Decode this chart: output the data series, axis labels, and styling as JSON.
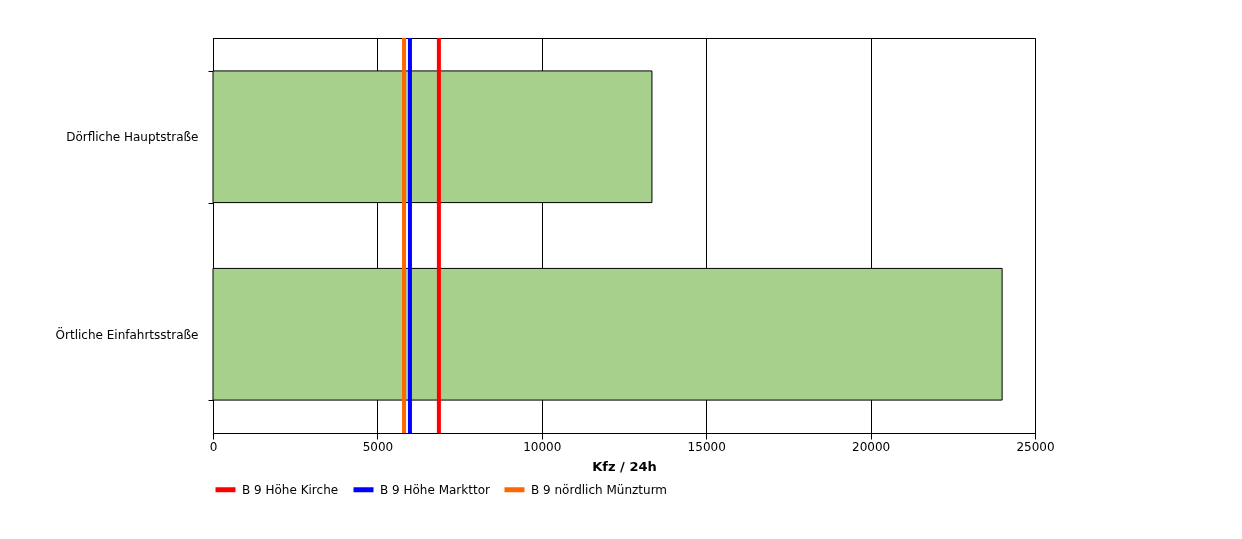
{
  "chart_data": {
    "type": "bar",
    "orientation": "horizontal",
    "xlabel": "Kfz / 24h",
    "categories": [
      "Dörfliche Hauptstraße",
      "Örtliche Einfahrtsstraße"
    ],
    "values": [
      13350,
      24000
    ],
    "color": "#a8d08d",
    "xlim": [
      0,
      25000
    ],
    "xticks": [
      0,
      5000,
      10000,
      15000,
      20000,
      25000
    ],
    "grid": "x",
    "legend": "bottom",
    "ref_lines": [
      {
        "axis": "x",
        "value": 6870,
        "label": "B 9 Höhe Kirche",
        "color": "#ff0000"
      },
      {
        "axis": "x",
        "value": 5990,
        "label": "B 9 Höhe Markttor",
        "color": "#0000ff"
      },
      {
        "axis": "x",
        "value": 5810,
        "label": "B 9 nördlich Münzturm",
        "color": "#ff6600"
      }
    ]
  }
}
